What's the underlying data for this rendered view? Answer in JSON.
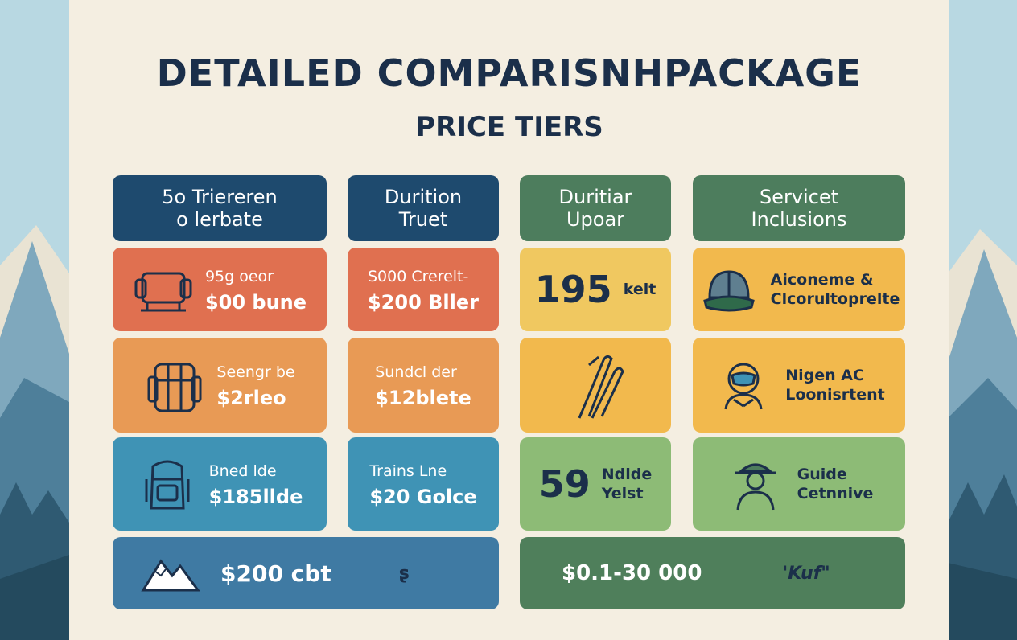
{
  "title": "DETAILED COMPARISNHPACKAGE",
  "subtitle": "PRICE TIERS",
  "headers": [
    {
      "line1": "5o Triereren",
      "line2": "o lerbate"
    },
    {
      "line1": "Durition",
      "line2": "Truet"
    },
    {
      "line1": "Duritiar",
      "line2": "Upoar"
    },
    {
      "line1": "Servicet",
      "line2": "Inclusions"
    }
  ],
  "rows": [
    {
      "col1": {
        "icon": "sled-icon",
        "line1": "95g oeor",
        "line2": "$00 bune"
      },
      "col2": {
        "line1": "S000 Crerelt-",
        "line2": "$200 Bller"
      },
      "col3": {
        "big": "195",
        "small": "kelt"
      },
      "col4": {
        "icon": "helmet-icon",
        "line1": "Aiconeme &",
        "line2": "Clcorultoprelte"
      }
    },
    {
      "col1": {
        "icon": "backpack-icon",
        "line1": "Seengr be",
        "line2": "$2rleo"
      },
      "col2": {
        "line1": "Sundcl der",
        "line2": "$12blete"
      },
      "col3": {
        "icon": "ski-poles-icon"
      },
      "col4": {
        "icon": "mask-icon",
        "line1": "Nigen AC",
        "line2": "Loonisrtent"
      }
    },
    {
      "col1": {
        "icon": "rucksack-icon",
        "line1": "Bned lde",
        "line2": "$185llde"
      },
      "col2": {
        "line1": "Trains Lne",
        "line2": "$20 Golce"
      },
      "col3": {
        "big": "59",
        "small1": "Ndlde",
        "small2": "Yelst"
      },
      "col4": {
        "icon": "guide-icon",
        "line1": "Guide",
        "line2": "Cetnnive"
      }
    }
  ],
  "footer": {
    "left": {
      "icon": "mountain-icon",
      "price": "$200 cbt",
      "mark": "ʂ"
    },
    "right": {
      "price": "$0.1-30 000",
      "mark": "'Kuf\""
    }
  },
  "colors": {
    "navy": "#1e4a6e",
    "green_header": "#4d7d5d",
    "orange_red": "#e07050",
    "orange": "#e89a55",
    "yellow": "#f0c860",
    "gold": "#f2b94d",
    "blue": "#3f93b5",
    "green": "#8dbb76",
    "text_dark": "#1b2f4a"
  }
}
